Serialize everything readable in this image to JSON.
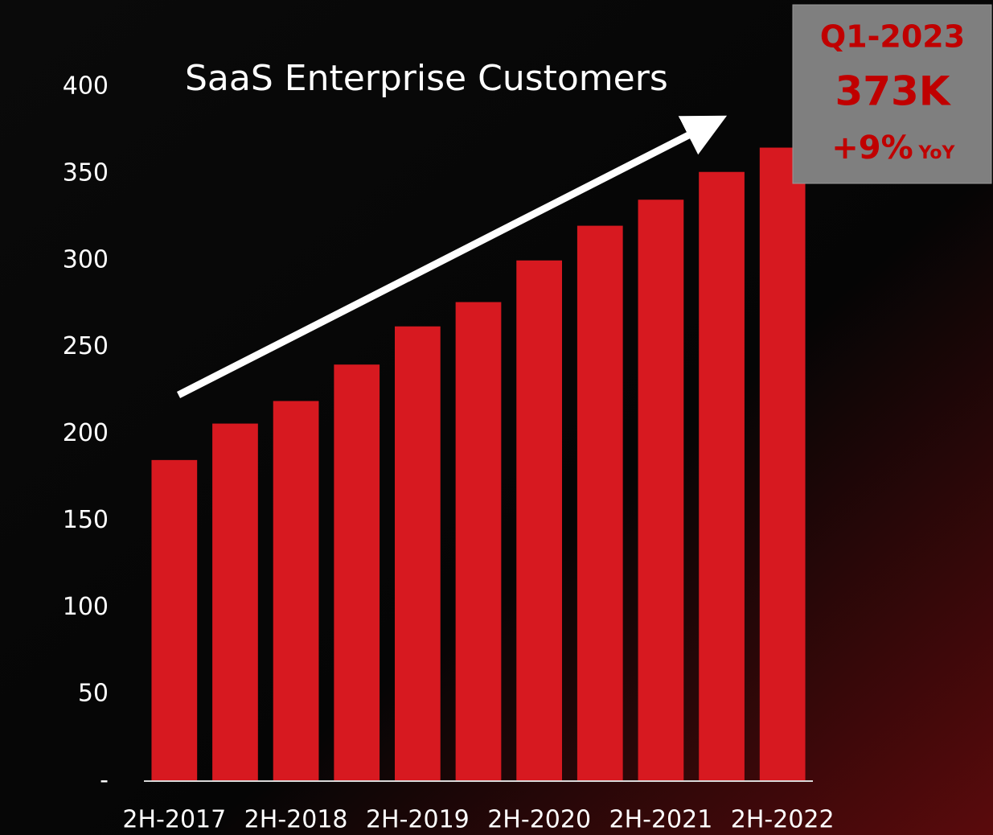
{
  "chart_data": {
    "type": "bar",
    "title": "SaaS Enterprise Customers",
    "categories": [
      "2H-2017",
      null,
      "2H-2018",
      null,
      "2H-2019",
      null,
      "2H-2020",
      null,
      "2H-2021",
      null,
      "2H-2022"
    ],
    "values": [
      185,
      206,
      219,
      240,
      262,
      276,
      300,
      320,
      335,
      351,
      365
    ],
    "color": "#d71920",
    "ylim": [
      0,
      400
    ],
    "yticks": [
      {
        "value": 0,
        "label": "-"
      },
      50,
      100,
      150,
      200,
      250,
      300,
      350,
      400
    ],
    "annotation": {
      "period": "Q1-2023",
      "value": "373K",
      "growth": "+9%",
      "growth_unit": "YoY"
    }
  }
}
